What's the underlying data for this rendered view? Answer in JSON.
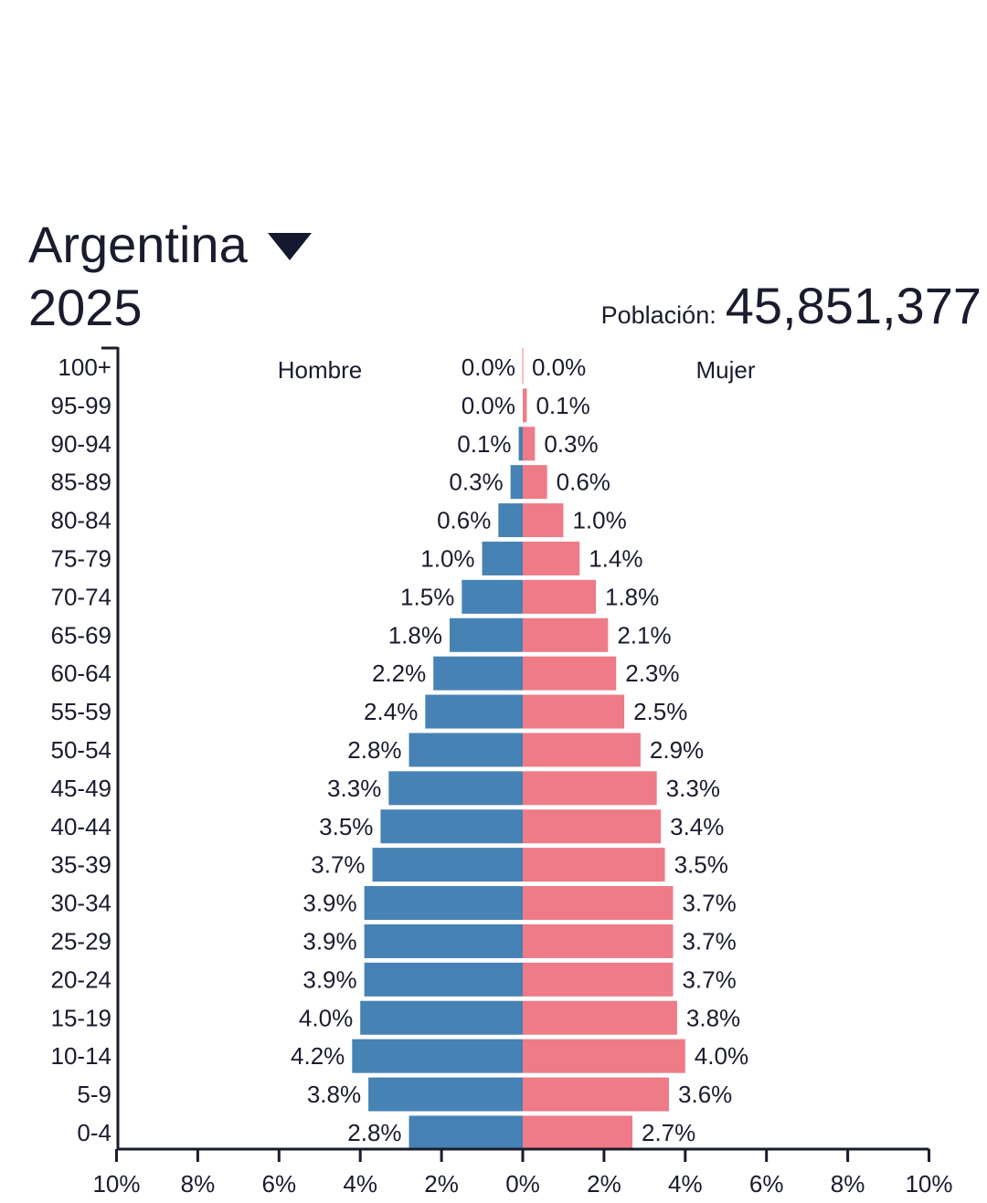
{
  "header": {
    "country": "Argentina",
    "year": "2025",
    "population_label": "Población:",
    "population_value": "45,851,377"
  },
  "colors": {
    "male": "#4682b4",
    "female": "#ee7b87",
    "axis": "#1a1c2e"
  },
  "icons": {
    "country_selector": "caret-down-icon"
  },
  "chart_data": {
    "type": "bar",
    "orientation": "horizontal-population-pyramid",
    "categories": [
      "100+",
      "95-99",
      "90-94",
      "85-89",
      "80-84",
      "75-79",
      "70-74",
      "65-69",
      "60-64",
      "55-59",
      "50-54",
      "45-49",
      "40-44",
      "35-39",
      "30-34",
      "25-29",
      "20-24",
      "15-19",
      "10-14",
      "5-9",
      "0-4"
    ],
    "series": [
      {
        "name": "Hombre",
        "values": [
          0.0,
          0.0,
          0.1,
          0.3,
          0.6,
          1.0,
          1.5,
          1.8,
          2.2,
          2.4,
          2.8,
          3.3,
          3.5,
          3.7,
          3.9,
          3.9,
          3.9,
          4.0,
          4.2,
          3.8,
          2.8
        ],
        "labels": [
          "0.0%",
          "0.0%",
          "0.1%",
          "0.3%",
          "0.6%",
          "1.0%",
          "1.5%",
          "1.8%",
          "2.2%",
          "2.4%",
          "2.8%",
          "3.3%",
          "3.5%",
          "3.7%",
          "3.9%",
          "3.9%",
          "3.9%",
          "4.0%",
          "4.2%",
          "3.8%",
          "2.8%"
        ]
      },
      {
        "name": "Mujer",
        "values": [
          0.0,
          0.1,
          0.3,
          0.6,
          1.0,
          1.4,
          1.8,
          2.1,
          2.3,
          2.5,
          2.9,
          3.3,
          3.4,
          3.5,
          3.7,
          3.7,
          3.7,
          3.8,
          4.0,
          3.6,
          2.7
        ],
        "labels": [
          "0.0%",
          "0.1%",
          "0.3%",
          "0.6%",
          "1.0%",
          "1.4%",
          "1.8%",
          "2.1%",
          "2.3%",
          "2.5%",
          "2.9%",
          "3.3%",
          "3.4%",
          "3.5%",
          "3.7%",
          "3.7%",
          "3.7%",
          "3.8%",
          "4.0%",
          "3.6%",
          "2.7%"
        ]
      }
    ],
    "xlim": [
      -10,
      10
    ],
    "xticks": [
      "10%",
      "8%",
      "6%",
      "4%",
      "2%",
      "0%",
      "2%",
      "4%",
      "6%",
      "8%",
      "10%"
    ],
    "grid": false,
    "legend": "series names at top, left and right of center"
  }
}
